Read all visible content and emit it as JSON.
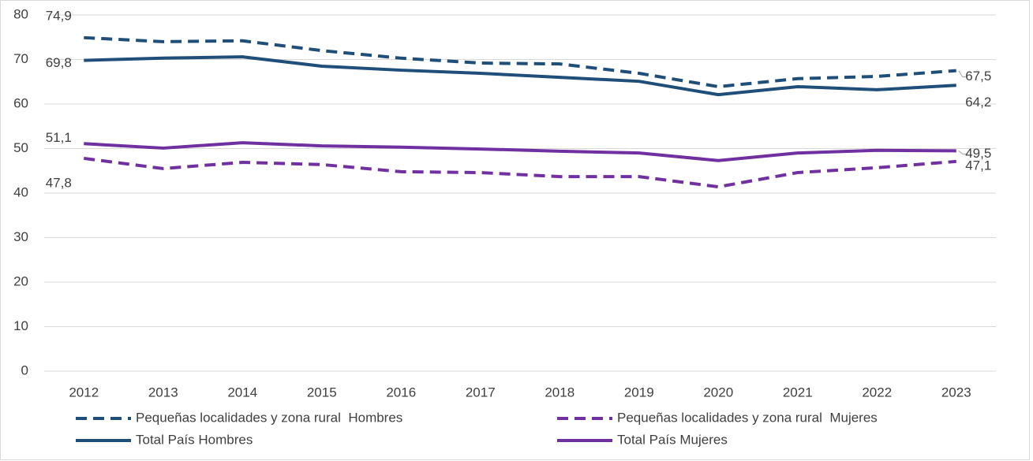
{
  "chart_data": {
    "type": "line",
    "categories": [
      "2012",
      "2013",
      "2014",
      "2015",
      "2016",
      "2017",
      "2018",
      "2019",
      "2020",
      "2021",
      "2022",
      "2023"
    ],
    "ylim": [
      0,
      80
    ],
    "yticks": [
      0,
      10,
      20,
      30,
      40,
      50,
      60,
      70,
      80
    ],
    "grid": true,
    "series": [
      {
        "name": "Pequeñas localidades y zona rural  Hombres",
        "color": "#1f4e79",
        "style": "dashed",
        "values": [
          74.9,
          74.0,
          74.2,
          72.0,
          70.3,
          69.2,
          69.0,
          66.9,
          63.9,
          65.7,
          66.2,
          67.5
        ],
        "value_labels": [
          "74,9",
          null,
          null,
          null,
          null,
          null,
          null,
          null,
          null,
          null,
          null,
          "67,5"
        ]
      },
      {
        "name": "Pequeñas localidades y zona rural  Mujeres",
        "color": "#7030a0",
        "style": "dashed",
        "values": [
          47.8,
          45.5,
          46.9,
          46.4,
          44.8,
          44.6,
          43.7,
          43.7,
          41.4,
          44.6,
          45.7,
          47.1
        ],
        "value_labels": [
          "47,8",
          null,
          null,
          null,
          null,
          null,
          null,
          null,
          null,
          null,
          null,
          "47,1"
        ]
      },
      {
        "name": "Total País Hombres",
        "color": "#1f4e79",
        "style": "solid",
        "values": [
          69.8,
          70.3,
          70.6,
          68.5,
          67.6,
          66.9,
          66.0,
          65.1,
          62.1,
          63.9,
          63.2,
          64.2
        ],
        "value_labels": [
          "69,8",
          null,
          null,
          null,
          null,
          null,
          null,
          null,
          null,
          null,
          null,
          "64,2"
        ]
      },
      {
        "name": "Total País Mujeres",
        "color": "#7030a0",
        "style": "solid",
        "values": [
          51.1,
          50.1,
          51.3,
          50.6,
          50.3,
          49.9,
          49.4,
          49.0,
          47.3,
          49.0,
          49.6,
          49.5
        ],
        "value_labels": [
          "51,1",
          null,
          null,
          null,
          null,
          null,
          null,
          null,
          null,
          null,
          null,
          "49,5"
        ]
      }
    ]
  }
}
